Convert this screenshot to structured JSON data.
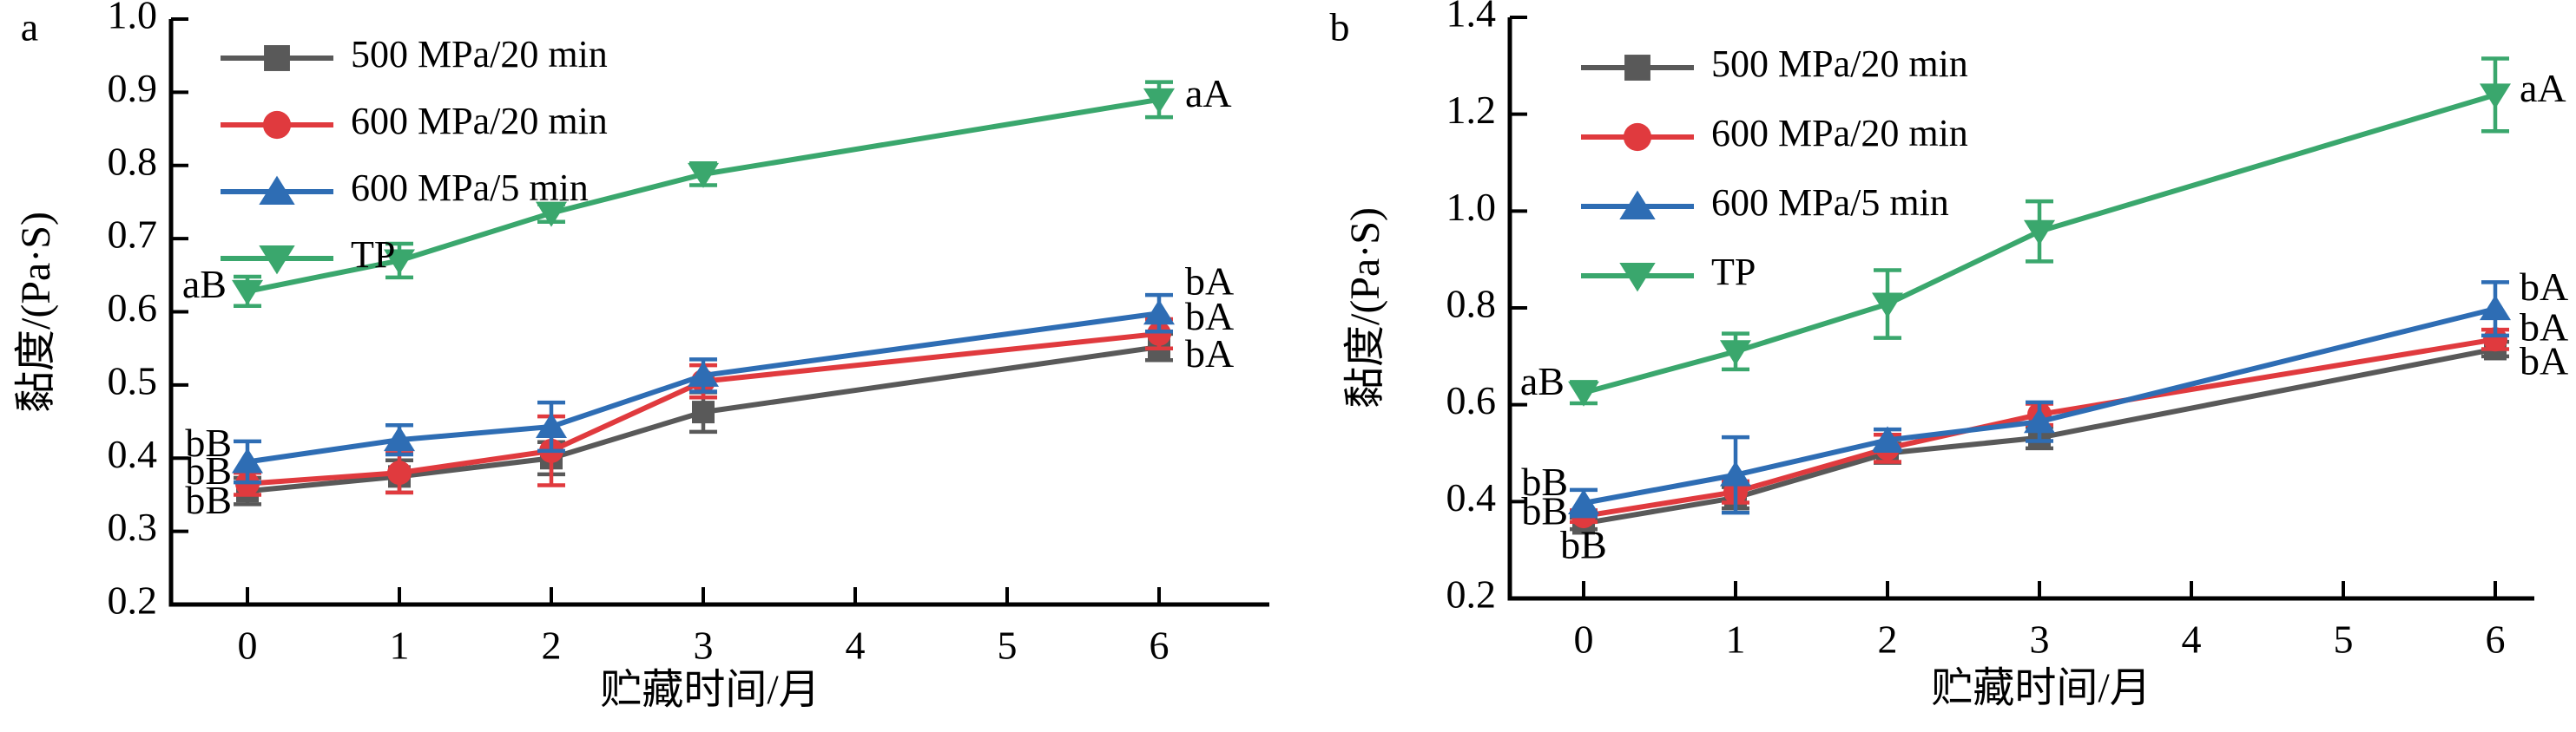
{
  "figure": {
    "background": "#ffffff",
    "axis_color": "#000000",
    "text_color": "#000000"
  },
  "chart_data": [
    {
      "panel_label": "a",
      "type": "line",
      "xlabel": "贮藏时间/月",
      "ylabel": "黏度/(Pa·S)",
      "x": [
        0,
        1,
        2,
        3,
        6
      ],
      "xtick_labels": [
        "0",
        "1",
        "2",
        "3",
        "4",
        "5",
        "6"
      ],
      "xticks": [
        0,
        1,
        2,
        3,
        4,
        5,
        6
      ],
      "ylim": [
        0.2,
        1.0
      ],
      "ytick_labels": [
        "0.2",
        "0.3",
        "0.4",
        "0.5",
        "0.6",
        "0.7",
        "0.8",
        "0.9",
        "1.0"
      ],
      "yticks": [
        0.2,
        0.3,
        0.4,
        0.5,
        0.6,
        0.7,
        0.8,
        0.9,
        1.0
      ],
      "grid": false,
      "legend_position": "top-left",
      "series": [
        {
          "name": "500 MPa/20 min",
          "color": "#595959",
          "marker": "square",
          "values": [
            0.355,
            0.375,
            0.4,
            0.463,
            0.552
          ],
          "errors": [
            0.018,
            0.022,
            0.022,
            0.027,
            0.018
          ]
        },
        {
          "name": "600 MPa/20 min",
          "color": "#e03a3e",
          "marker": "circle",
          "values": [
            0.365,
            0.38,
            0.41,
            0.505,
            0.57
          ],
          "errors": [
            0.015,
            0.027,
            0.047,
            0.022,
            0.02
          ]
        },
        {
          "name": "600 MPa/5 min",
          "color": "#2e6db4",
          "marker": "triangle-up",
          "values": [
            0.395,
            0.425,
            0.443,
            0.513,
            0.598
          ],
          "errors": [
            0.028,
            0.02,
            0.033,
            0.022,
            0.025
          ]
        },
        {
          "name": "TP",
          "color": "#3aa76d",
          "marker": "triangle-down",
          "values": [
            0.628,
            0.67,
            0.735,
            0.788,
            0.89
          ],
          "errors": [
            0.02,
            0.023,
            0.012,
            0.015,
            0.024
          ]
        }
      ],
      "annotations": [
        {
          "text": "aB",
          "x": 0,
          "y": 0.632,
          "dx": -24,
          "anchor": "end"
        },
        {
          "text": "bB",
          "x": 0,
          "y": 0.415,
          "dx": -18,
          "anchor": "end"
        },
        {
          "text": "bB",
          "x": 0,
          "y": 0.377,
          "dx": -18,
          "anchor": "end"
        },
        {
          "text": "bB",
          "x": 0,
          "y": 0.337,
          "dx": -18,
          "anchor": "end"
        },
        {
          "text": "aA",
          "x": 6,
          "y": 0.893,
          "dx": 30,
          "anchor": "start"
        },
        {
          "text": "bA",
          "x": 6,
          "y": 0.636,
          "dx": 30,
          "anchor": "start"
        },
        {
          "text": "bA",
          "x": 6,
          "y": 0.588,
          "dx": 30,
          "anchor": "start"
        },
        {
          "text": "bA",
          "x": 6,
          "y": 0.537,
          "dx": 30,
          "anchor": "start"
        }
      ]
    },
    {
      "panel_label": "b",
      "type": "line",
      "xlabel": "贮藏时间/月",
      "ylabel": "黏度/(Pa·S)",
      "x": [
        0,
        1,
        2,
        3,
        6
      ],
      "xtick_labels": [
        "0",
        "1",
        "2",
        "3",
        "4",
        "5",
        "6"
      ],
      "xticks": [
        0,
        1,
        2,
        3,
        4,
        5,
        6
      ],
      "ylim": [
        0.2,
        1.4
      ],
      "ytick_labels": [
        "0.2",
        "0.4",
        "0.6",
        "0.8",
        "1.0",
        "1.2",
        "1.4"
      ],
      "yticks": [
        0.2,
        0.4,
        0.6,
        0.8,
        1.0,
        1.2,
        1.4
      ],
      "grid": false,
      "legend_position": "top-left",
      "series": [
        {
          "name": "500 MPa/20 min",
          "color": "#595959",
          "marker": "square",
          "values": [
            0.355,
            0.408,
            0.5,
            0.532,
            0.715
          ],
          "errors": [
            0.012,
            0.022,
            0.02,
            0.022,
            0.015
          ]
        },
        {
          "name": "600 MPa/20 min",
          "color": "#e03a3e",
          "marker": "circle",
          "values": [
            0.37,
            0.42,
            0.51,
            0.58,
            0.735
          ],
          "errors": [
            0.012,
            0.022,
            0.028,
            0.022,
            0.02
          ]
        },
        {
          "name": "600 MPa/5 min",
          "color": "#2e6db4",
          "marker": "triangle-up",
          "values": [
            0.397,
            0.455,
            0.527,
            0.565,
            0.798
          ],
          "errors": [
            0.027,
            0.078,
            0.022,
            0.04,
            0.055
          ]
        },
        {
          "name": "TP",
          "color": "#3aa76d",
          "marker": "triangle-down",
          "values": [
            0.625,
            0.71,
            0.808,
            0.958,
            1.24
          ],
          "errors": [
            0.022,
            0.037,
            0.07,
            0.062,
            0.075
          ]
        }
      ],
      "annotations": [
        {
          "text": "aB",
          "x": 0,
          "y": 0.64,
          "dx": -22,
          "anchor": "end"
        },
        {
          "text": "bB",
          "x": 0,
          "y": 0.432,
          "dx": -18,
          "anchor": "end"
        },
        {
          "text": "bB",
          "x": 0,
          "y": 0.372,
          "dx": -18,
          "anchor": "end"
        },
        {
          "text": "bB",
          "x": 0,
          "y": 0.302,
          "dx": 0,
          "anchor": "middle"
        },
        {
          "text": "aA",
          "x": 6,
          "y": 1.245,
          "dx": 28,
          "anchor": "start"
        },
        {
          "text": "bA",
          "x": 6,
          "y": 0.835,
          "dx": 28,
          "anchor": "start"
        },
        {
          "text": "bA",
          "x": 6,
          "y": 0.752,
          "dx": 28,
          "anchor": "start"
        },
        {
          "text": "bA",
          "x": 6,
          "y": 0.682,
          "dx": 28,
          "anchor": "start"
        }
      ]
    }
  ]
}
